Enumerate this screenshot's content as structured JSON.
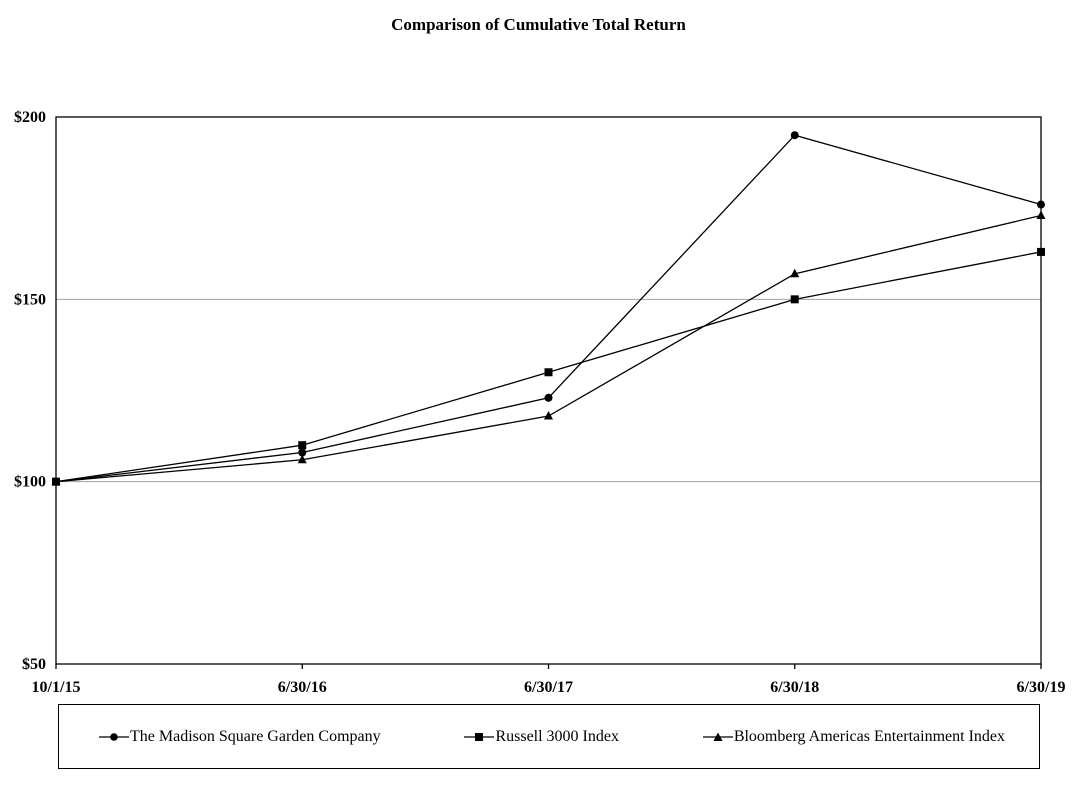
{
  "page": {
    "title": "Comparison of Cumulative Total Return"
  },
  "chart_data": {
    "type": "line",
    "title": "Comparison of Cumulative Total Return",
    "categories": [
      "10/1/15",
      "6/30/16",
      "6/30/17",
      "6/30/18",
      "6/30/19"
    ],
    "series": [
      {
        "name": "The Madison Square Garden Company",
        "marker": "circle",
        "values": [
          100,
          108,
          123,
          195,
          176
        ]
      },
      {
        "name": "Russell 3000 Index",
        "marker": "square",
        "values": [
          100,
          110,
          130,
          150,
          163
        ]
      },
      {
        "name": "Bloomberg Americas Entertainment Index",
        "marker": "triangle",
        "values": [
          100,
          106,
          118,
          157,
          173
        ]
      }
    ],
    "xlabel": "",
    "ylabel": "",
    "ylim": [
      50,
      200
    ],
    "y_ticks": [
      "$200",
      "$150",
      "$100",
      "$50"
    ],
    "y_tick_values": [
      200,
      150,
      100,
      50
    ],
    "gridlines": [
      150,
      100
    ],
    "grid_on": true,
    "legend_position": "bottom",
    "line_color": "#000000",
    "grid_color": "#a0a0a0",
    "background": "#ffffff"
  }
}
